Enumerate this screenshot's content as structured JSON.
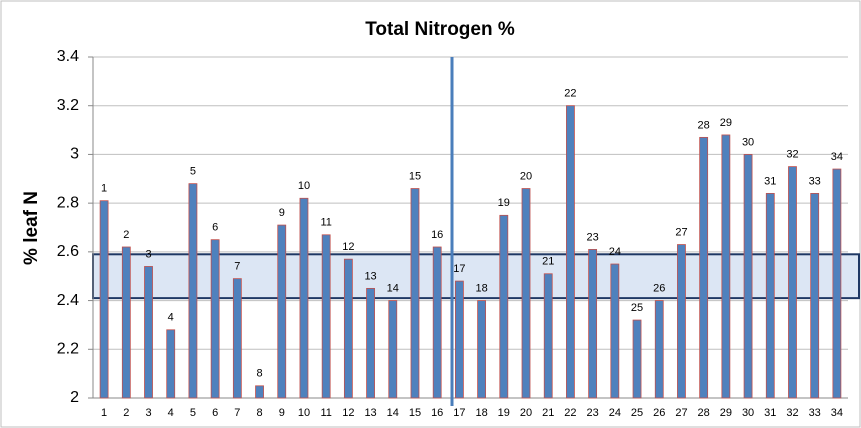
{
  "chart_data": {
    "type": "bar",
    "title": "Total Nitrogen %",
    "y_label": "% leaf N",
    "categories": [
      "1",
      "2",
      "3",
      "4",
      "5",
      "6",
      "7",
      "8",
      "9",
      "10",
      "11",
      "12",
      "13",
      "14",
      "15",
      "16",
      "17",
      "18",
      "19",
      "20",
      "21",
      "22",
      "23",
      "24",
      "25",
      "26",
      "27",
      "28",
      "29",
      "30",
      "31",
      "32",
      "33",
      "34"
    ],
    "values": [
      2.81,
      2.62,
      2.54,
      2.28,
      2.88,
      2.65,
      2.49,
      2.05,
      2.71,
      2.82,
      2.67,
      2.57,
      2.45,
      2.4,
      2.86,
      2.62,
      2.48,
      2.4,
      2.75,
      2.86,
      2.51,
      3.2,
      2.61,
      2.55,
      2.32,
      2.4,
      2.63,
      3.07,
      3.08,
      3.0,
      2.84,
      2.95,
      2.84,
      2.94
    ],
    "color": "#4f81bd",
    "edge_color": "#c0504d",
    "band": [
      2.41,
      2.59
    ],
    "band_color": "#dce6f4",
    "ylim": [
      2,
      3.4
    ],
    "yticks": [
      2,
      2.2,
      2.4,
      2.6,
      2.8,
      3,
      3.2,
      3.4
    ],
    "grid": true
  }
}
